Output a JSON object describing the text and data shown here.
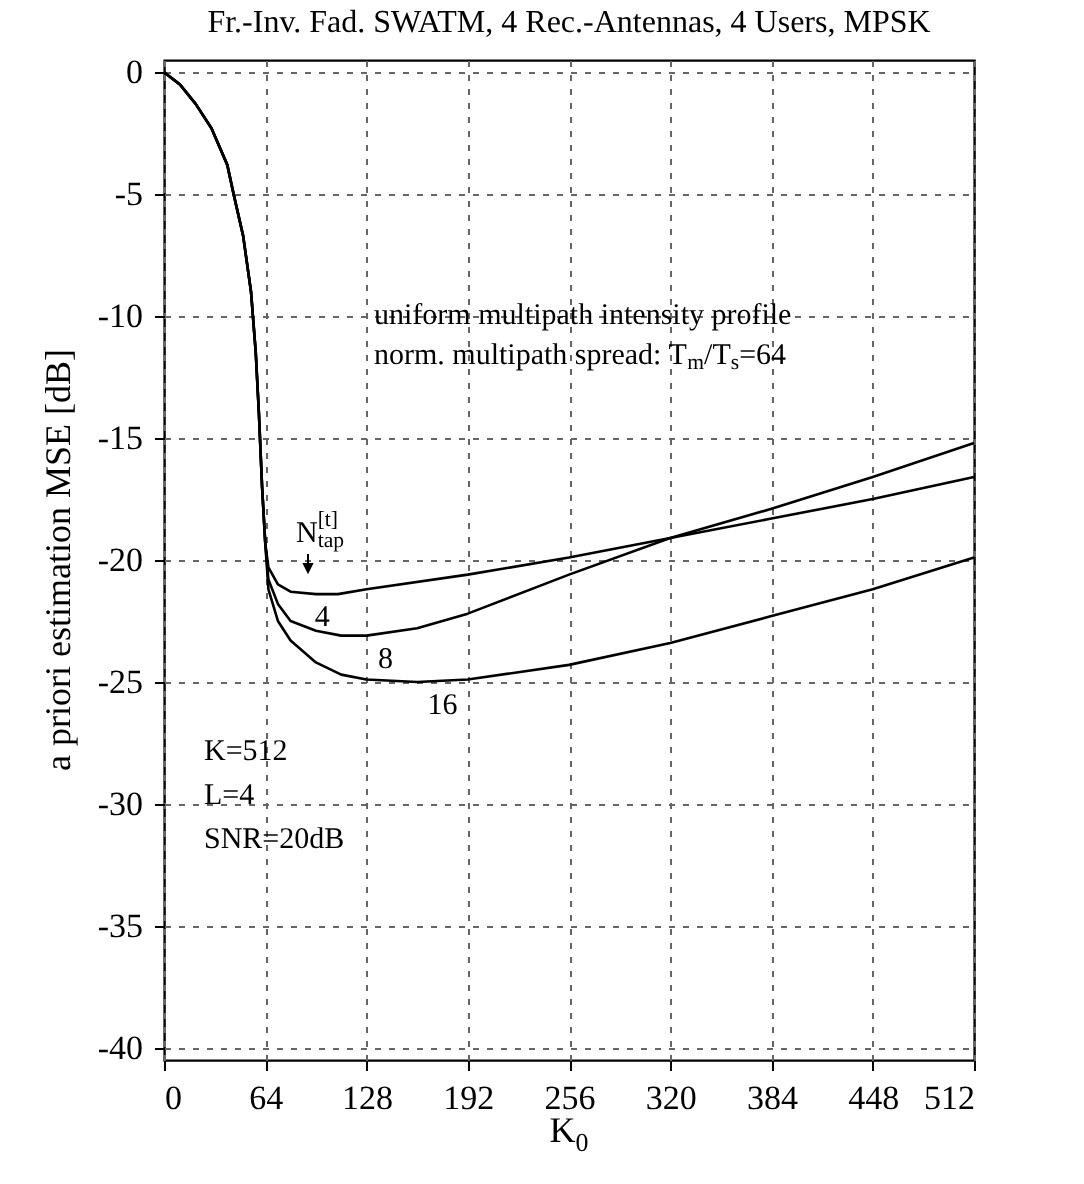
{
  "chart_data": {
    "type": "line",
    "title": "Fr.-Inv. Fad. SWATM, 4 Rec.-Antennas, 4 Users, MPSK",
    "xlabel": "K$_{0}$",
    "ylabel": "a priori estimation MSE [dB]",
    "series": [
      {
        "color": "#000000",
        "x": [
          0,
          10,
          20,
          30,
          40,
          44,
          50,
          55,
          58,
          60,
          62,
          64,
          66,
          72,
          80,
          96,
          110,
          128,
          192,
          256,
          320,
          384,
          448,
          512
        ],
        "values": [
          0,
          -0.5,
          -1.3,
          -2.3,
          -3.8,
          -5,
          -6.7,
          -9,
          -11.5,
          -14,
          -17,
          -19.3,
          -20.3,
          -21,
          -21.3,
          -21.4,
          -21.4,
          -21.2,
          -20.6,
          -19.9,
          -19.1,
          -18.3,
          -17.5,
          -16.6
        ]
      },
      {
        "color": "#000000",
        "x": [
          0,
          10,
          20,
          30,
          40,
          44,
          50,
          55,
          58,
          60,
          62,
          64,
          66,
          72,
          80,
          96,
          112,
          128,
          160,
          192,
          256,
          320,
          384,
          448,
          512
        ],
        "values": [
          0,
          -0.5,
          -1.3,
          -2.3,
          -3.8,
          -5,
          -6.7,
          -9,
          -11.5,
          -14,
          -17,
          -19.3,
          -20.8,
          -21.8,
          -22.5,
          -22.9,
          -23.1,
          -23.1,
          -22.8,
          -22.2,
          -20.6,
          -19.1,
          -17.9,
          -16.6,
          -15.2
        ]
      },
      {
        "color": "#000000",
        "x": [
          0,
          10,
          20,
          30,
          40,
          44,
          50,
          55,
          58,
          60,
          62,
          64,
          66,
          72,
          80,
          96,
          112,
          128,
          160,
          192,
          256,
          320,
          384,
          448,
          512
        ],
        "values": [
          0,
          -0.5,
          -1.3,
          -2.3,
          -3.8,
          -5,
          -6.7,
          -9,
          -11.5,
          -14,
          -17,
          -19.3,
          -21.2,
          -22.5,
          -23.3,
          -24.2,
          -24.7,
          -24.9,
          -25,
          -24.9,
          -24.3,
          -23.4,
          -22.3,
          -21.2,
          -19.9
        ]
      }
    ],
    "xlim": [
      0,
      512
    ],
    "xticks": [
      0,
      64,
      128,
      192,
      256,
      320,
      384,
      448,
      512
    ],
    "ylim": [
      -40.5,
      0.5
    ],
    "yticks": [
      0,
      -5,
      -10,
      -15,
      -20,
      -25,
      -30,
      -35,
      -40
    ],
    "grid": true,
    "line_style": "solid",
    "marker": "none",
    "annotations": [
      {
        "text": "4",
        "x": 100,
        "y": -21.4
      },
      {
        "text": "8",
        "x": 140,
        "y": -23.1
      },
      {
        "text": "16",
        "x": 176,
        "y": -25
      },
      "N$^{[t]}$$_{tap}$",
      "uniform multipath intensity profile",
      "norm. multipath spread: T$_{m}$/T$_{s}$=64",
      "K=512",
      "L=4",
      "SNR=20dB"
    ]
  }
}
